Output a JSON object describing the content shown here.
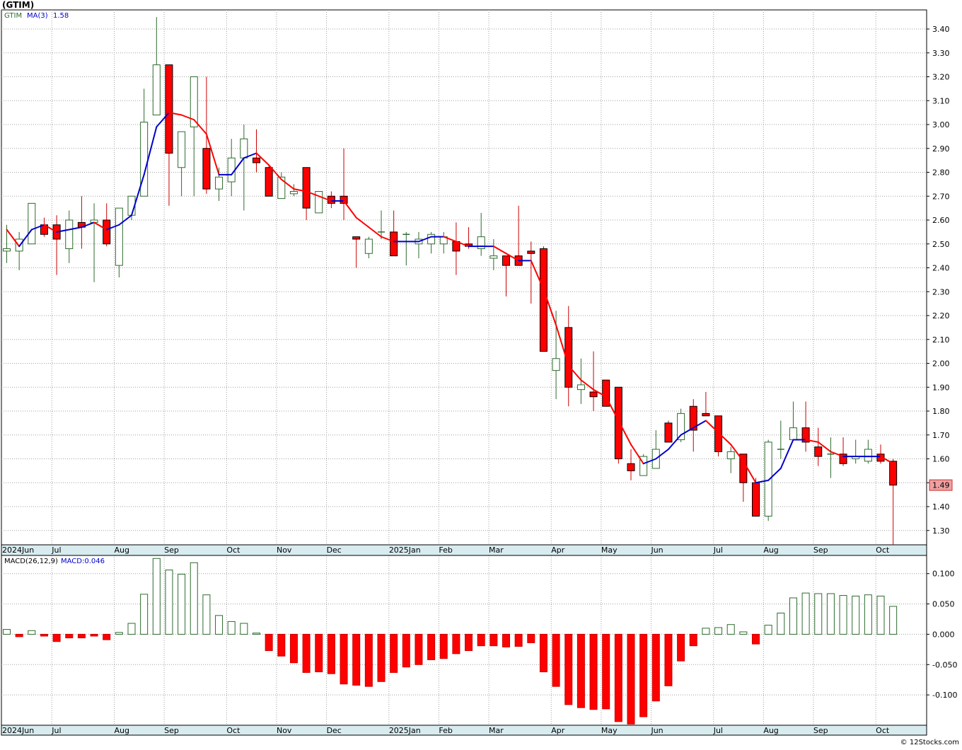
{
  "header": {
    "title": "(GTIM)",
    "legend_symbol": "GTIM",
    "legend_ma": "MA(3)",
    "legend_ma_value": "1.58",
    "macd_legend": "MACD(26,12,9)",
    "macd_value_text": "MACD:0.046",
    "last_price_tag": "1.49",
    "footer": "© 12Stocks.com"
  },
  "colors": {
    "up_candle_border": "#2e6b2e",
    "down_candle": "#ff0000",
    "ma_up": "#0000cc",
    "ma_down": "#ff0000",
    "macd_pos_border": "#2e6b2e",
    "macd_neg": "#ff0000",
    "grid": "#a0a0a0",
    "axis_band": "#d8ecf0",
    "price_tag_bg": "#f0a0a0"
  },
  "chart_data": {
    "type": "candlestick",
    "price_ylim": [
      1.24,
      3.48
    ],
    "price_ticks": [
      "3.40",
      "3.30",
      "3.20",
      "3.10",
      "3.00",
      "2.90",
      "2.80",
      "2.70",
      "2.60",
      "2.50",
      "2.40",
      "2.30",
      "2.20",
      "2.10",
      "2.00",
      "1.90",
      "1.80",
      "1.70",
      "1.60",
      "1.50",
      "1.40",
      "1.30"
    ],
    "month_labels": [
      {
        "label": "2024Jun",
        "index": 0
      },
      {
        "label": "Jul",
        "index": 4
      },
      {
        "label": "Aug",
        "index": 9
      },
      {
        "label": "Sep",
        "index": 13
      },
      {
        "label": "Oct",
        "index": 18
      },
      {
        "label": "Nov",
        "index": 22
      },
      {
        "label": "Dec",
        "index": 26
      },
      {
        "label": "2025Jan",
        "index": 31
      },
      {
        "label": "Feb",
        "index": 35
      },
      {
        "label": "Mar",
        "index": 39
      },
      {
        "label": "Apr",
        "index": 44
      },
      {
        "label": "May",
        "index": 48
      },
      {
        "label": "Jun",
        "index": 52
      },
      {
        "label": "Jul",
        "index": 57
      },
      {
        "label": "Aug",
        "index": 61
      },
      {
        "label": "Sep",
        "index": 65
      },
      {
        "label": "Oct",
        "index": 70
      }
    ],
    "candles": [
      {
        "o": 2.47,
        "h": 2.58,
        "l": 2.42,
        "c": 2.48
      },
      {
        "o": 2.47,
        "h": 2.55,
        "l": 2.39,
        "c": 2.52
      },
      {
        "o": 2.5,
        "h": 2.67,
        "l": 2.5,
        "c": 2.67
      },
      {
        "o": 2.58,
        "h": 2.61,
        "l": 2.53,
        "c": 2.54
      },
      {
        "o": 2.58,
        "h": 2.62,
        "l": 2.37,
        "c": 2.52
      },
      {
        "o": 2.48,
        "h": 2.64,
        "l": 2.42,
        "c": 2.6
      },
      {
        "o": 2.59,
        "h": 2.7,
        "l": 2.48,
        "c": 2.57
      },
      {
        "o": 2.59,
        "h": 2.67,
        "l": 2.34,
        "c": 2.6
      },
      {
        "o": 2.6,
        "h": 2.67,
        "l": 2.49,
        "c": 2.5
      },
      {
        "o": 2.41,
        "h": 2.65,
        "l": 2.36,
        "c": 2.65
      },
      {
        "o": 2.62,
        "h": 2.7,
        "l": 2.6,
        "c": 2.7
      },
      {
        "o": 2.7,
        "h": 3.15,
        "l": 2.7,
        "c": 3.01
      },
      {
        "o": 3.04,
        "h": 3.45,
        "l": 3.04,
        "c": 3.25
      },
      {
        "o": 3.25,
        "h": 3.25,
        "l": 2.66,
        "c": 2.88
      },
      {
        "o": 2.82,
        "h": 2.97,
        "l": 2.7,
        "c": 2.97
      },
      {
        "o": 2.99,
        "h": 3.2,
        "l": 2.7,
        "c": 3.2
      },
      {
        "o": 2.9,
        "h": 3.2,
        "l": 2.71,
        "c": 2.73
      },
      {
        "o": 2.73,
        "h": 2.82,
        "l": 2.68,
        "c": 2.78
      },
      {
        "o": 2.76,
        "h": 2.94,
        "l": 2.7,
        "c": 2.86
      },
      {
        "o": 2.86,
        "h": 3.0,
        "l": 2.64,
        "c": 2.94
      },
      {
        "o": 2.86,
        "h": 2.98,
        "l": 2.8,
        "c": 2.84
      },
      {
        "o": 2.82,
        "h": 2.83,
        "l": 2.7,
        "c": 2.7
      },
      {
        "o": 2.69,
        "h": 2.8,
        "l": 2.69,
        "c": 2.78
      },
      {
        "o": 2.71,
        "h": 2.75,
        "l": 2.7,
        "c": 2.72
      },
      {
        "o": 2.82,
        "h": 2.82,
        "l": 2.6,
        "c": 2.65
      },
      {
        "o": 2.63,
        "h": 2.72,
        "l": 2.63,
        "c": 2.72
      },
      {
        "o": 2.7,
        "h": 2.72,
        "l": 2.65,
        "c": 2.67
      },
      {
        "o": 2.7,
        "h": 2.9,
        "l": 2.6,
        "c": 2.67
      },
      {
        "o": 2.53,
        "h": 2.53,
        "l": 2.4,
        "c": 2.52
      },
      {
        "o": 2.46,
        "h": 2.53,
        "l": 2.44,
        "c": 2.52
      },
      {
        "o": 2.55,
        "h": 2.64,
        "l": 2.52,
        "c": 2.55
      },
      {
        "o": 2.55,
        "h": 2.64,
        "l": 2.45,
        "c": 2.45
      },
      {
        "o": 2.54,
        "h": 2.55,
        "l": 2.41,
        "c": 2.54
      },
      {
        "o": 2.5,
        "h": 2.55,
        "l": 2.44,
        "c": 2.52
      },
      {
        "o": 2.5,
        "h": 2.55,
        "l": 2.46,
        "c": 2.54
      },
      {
        "o": 2.5,
        "h": 2.55,
        "l": 2.46,
        "c": 2.53
      },
      {
        "o": 2.51,
        "h": 2.59,
        "l": 2.37,
        "c": 2.47
      },
      {
        "o": 2.5,
        "h": 2.57,
        "l": 2.48,
        "c": 2.49
      },
      {
        "o": 2.48,
        "h": 2.63,
        "l": 2.45,
        "c": 2.53
      },
      {
        "o": 2.44,
        "h": 2.52,
        "l": 2.39,
        "c": 2.45
      },
      {
        "o": 2.45,
        "h": 2.45,
        "l": 2.28,
        "c": 2.41
      },
      {
        "o": 2.45,
        "h": 2.66,
        "l": 2.42,
        "c": 2.41
      },
      {
        "o": 2.47,
        "h": 2.51,
        "l": 2.25,
        "c": 2.46
      },
      {
        "o": 2.48,
        "h": 2.49,
        "l": 2.05,
        "c": 2.05
      },
      {
        "o": 1.97,
        "h": 2.22,
        "l": 1.85,
        "c": 2.02
      },
      {
        "o": 2.15,
        "h": 2.24,
        "l": 1.82,
        "c": 1.9
      },
      {
        "o": 1.89,
        "h": 2.02,
        "l": 1.83,
        "c": 1.91
      },
      {
        "o": 1.88,
        "h": 2.05,
        "l": 1.8,
        "c": 1.86
      },
      {
        "o": 1.93,
        "h": 1.93,
        "l": 1.82,
        "c": 1.82
      },
      {
        "o": 1.9,
        "h": 1.9,
        "l": 1.58,
        "c": 1.6
      },
      {
        "o": 1.58,
        "h": 1.64,
        "l": 1.51,
        "c": 1.55
      },
      {
        "o": 1.53,
        "h": 1.62,
        "l": 1.53,
        "c": 1.61
      },
      {
        "o": 1.56,
        "h": 1.72,
        "l": 1.56,
        "c": 1.64
      },
      {
        "o": 1.75,
        "h": 1.76,
        "l": 1.67,
        "c": 1.67
      },
      {
        "o": 1.68,
        "h": 1.81,
        "l": 1.67,
        "c": 1.79
      },
      {
        "o": 1.82,
        "h": 1.85,
        "l": 1.63,
        "c": 1.72
      },
      {
        "o": 1.79,
        "h": 1.88,
        "l": 1.78,
        "c": 1.78
      },
      {
        "o": 1.78,
        "h": 1.78,
        "l": 1.61,
        "c": 1.63
      },
      {
        "o": 1.6,
        "h": 1.65,
        "l": 1.54,
        "c": 1.63
      },
      {
        "o": 1.62,
        "h": 1.62,
        "l": 1.42,
        "c": 1.5
      },
      {
        "o": 1.5,
        "h": 1.52,
        "l": 1.36,
        "c": 1.36
      },
      {
        "o": 1.36,
        "h": 1.68,
        "l": 1.34,
        "c": 1.67
      },
      {
        "o": 1.64,
        "h": 1.76,
        "l": 1.6,
        "c": 1.64
      },
      {
        "o": 1.68,
        "h": 1.84,
        "l": 1.68,
        "c": 1.73
      },
      {
        "o": 1.73,
        "h": 1.84,
        "l": 1.63,
        "c": 1.67
      },
      {
        "o": 1.65,
        "h": 1.73,
        "l": 1.57,
        "c": 1.61
      },
      {
        "o": 1.62,
        "h": 1.69,
        "l": 1.52,
        "c": 1.62
      },
      {
        "o": 1.62,
        "h": 1.69,
        "l": 1.57,
        "c": 1.58
      },
      {
        "o": 1.6,
        "h": 1.68,
        "l": 1.58,
        "c": 1.61
      },
      {
        "o": 1.59,
        "h": 1.68,
        "l": 1.58,
        "c": 1.64
      },
      {
        "o": 1.62,
        "h": 1.66,
        "l": 1.58,
        "c": 1.59
      },
      {
        "o": 1.59,
        "h": 1.6,
        "l": 1.24,
        "c": 1.49
      }
    ],
    "ma_label": "MA(3)",
    "ma_values": [
      2.56,
      2.49,
      2.56,
      2.58,
      2.55,
      2.56,
      2.57,
      2.59,
      2.56,
      2.58,
      2.62,
      2.79,
      2.99,
      3.05,
      3.04,
      3.02,
      2.96,
      2.79,
      2.79,
      2.86,
      2.88,
      2.83,
      2.77,
      2.73,
      2.72,
      2.7,
      2.68,
      2.68,
      2.61,
      2.57,
      2.53,
      2.51,
      2.51,
      2.51,
      2.53,
      2.53,
      2.51,
      2.49,
      2.49,
      2.49,
      2.46,
      2.43,
      2.43,
      2.31,
      2.16,
      1.99,
      1.93,
      1.89,
      1.86,
      1.76,
      1.66,
      1.58,
      1.6,
      1.64,
      1.7,
      1.73,
      1.76,
      1.71,
      1.66,
      1.59,
      1.5,
      1.51,
      1.56,
      1.68,
      1.68,
      1.67,
      1.63,
      1.61,
      1.61,
      1.61,
      1.61,
      1.58
    ],
    "macd_label": "MACD(26,12,9)",
    "macd_ylim": [
      -0.15,
      0.13
    ],
    "macd_ticks": [
      "0.100",
      "0.050",
      "0.000",
      "-0.050",
      "-0.100"
    ],
    "macd_values": [
      0.008,
      -0.004,
      0.006,
      -0.003,
      -0.012,
      -0.006,
      -0.006,
      -0.003,
      -0.009,
      0.003,
      0.018,
      0.066,
      0.125,
      0.106,
      0.099,
      0.118,
      0.065,
      0.031,
      0.021,
      0.018,
      0.002,
      -0.027,
      -0.036,
      -0.047,
      -0.063,
      -0.062,
      -0.065,
      -0.082,
      -0.084,
      -0.086,
      -0.078,
      -0.063,
      -0.054,
      -0.05,
      -0.042,
      -0.04,
      -0.032,
      -0.027,
      -0.019,
      -0.019,
      -0.021,
      -0.02,
      -0.014,
      -0.062,
      -0.086,
      -0.116,
      -0.121,
      -0.124,
      -0.123,
      -0.144,
      -0.148,
      -0.136,
      -0.11,
      -0.085,
      -0.044,
      -0.019,
      0.01,
      0.011,
      0.016,
      0.004,
      -0.016,
      0.015,
      0.035,
      0.06,
      0.068,
      0.067,
      0.067,
      0.064,
      0.063,
      0.065,
      0.063,
      0.046
    ]
  }
}
